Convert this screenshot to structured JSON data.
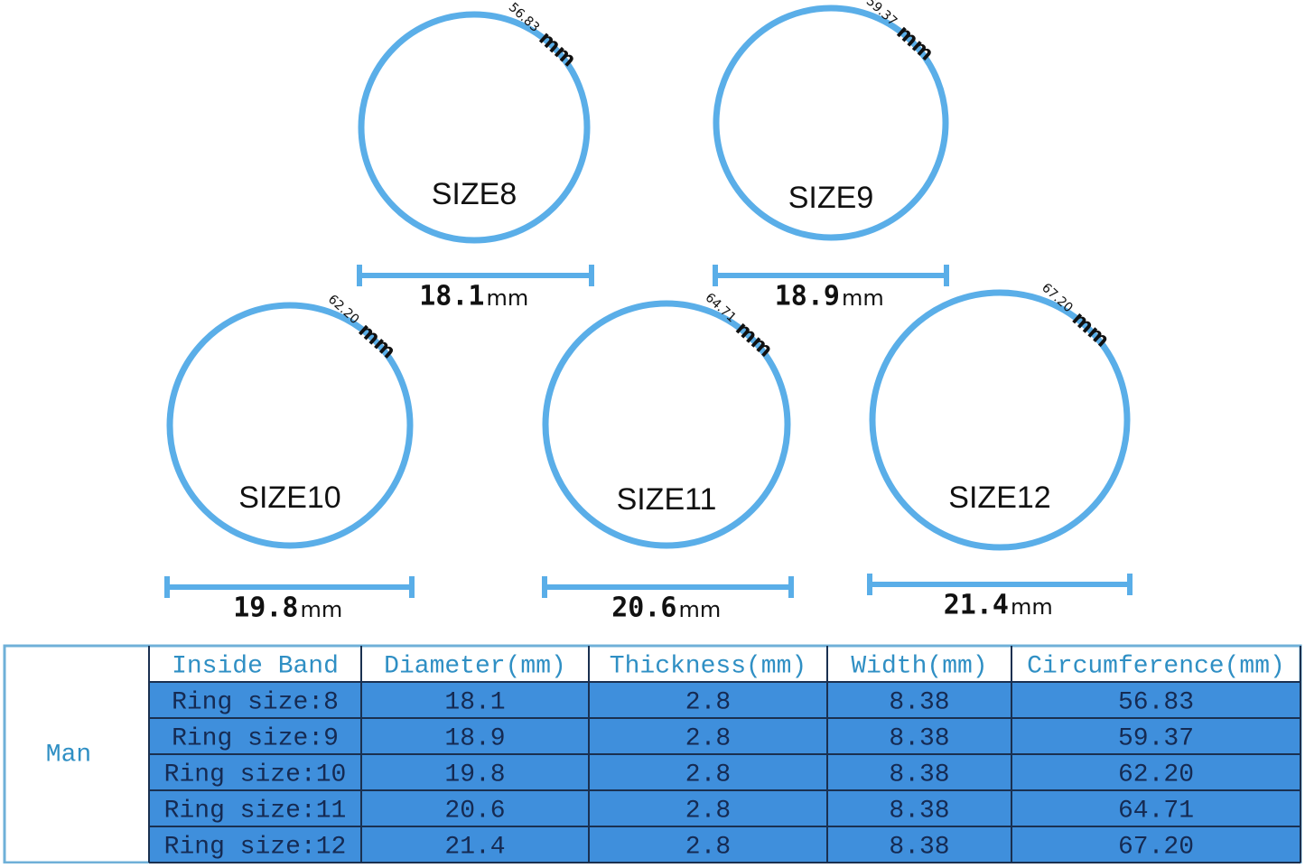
{
  "rings": [
    {
      "size": "SIZE8",
      "circumference": "56.83",
      "circumference_unit": "mm",
      "diameter": "18.1",
      "diameter_unit": "mm"
    },
    {
      "size": "SIZE9",
      "circumference": "59.37",
      "circumference_unit": "mm",
      "diameter": "18.9",
      "diameter_unit": "mm"
    },
    {
      "size": "SIZE10",
      "circumference": "62.20",
      "circumference_unit": "mm",
      "diameter": "19.8",
      "diameter_unit": "mm"
    },
    {
      "size": "SIZE11",
      "circumference": "64.71",
      "circumference_unit": "mm",
      "diameter": "20.6",
      "diameter_unit": "mm"
    },
    {
      "size": "SIZE12",
      "circumference": "67.20",
      "circumference_unit": "mm",
      "diameter": "21.4",
      "diameter_unit": "mm"
    }
  ],
  "table": {
    "group": "Man",
    "header": [
      "Inside Band",
      "Diameter(mm)",
      "Thickness(mm)",
      "Width(mm)",
      "Circumference(mm)"
    ],
    "rows": [
      [
        "Ring size:8",
        "18.1",
        "2.8",
        "8.38",
        "56.83"
      ],
      [
        "Ring size:9",
        "18.9",
        "2.8",
        "8.38",
        "59.37"
      ],
      [
        "Ring size:10",
        "19.8",
        "2.8",
        "8.38",
        "62.20"
      ],
      [
        "Ring size:11",
        "20.6",
        "2.8",
        "8.38",
        "64.71"
      ],
      [
        "Ring size:12",
        "21.4",
        "2.8",
        "8.38",
        "67.20"
      ]
    ]
  }
}
